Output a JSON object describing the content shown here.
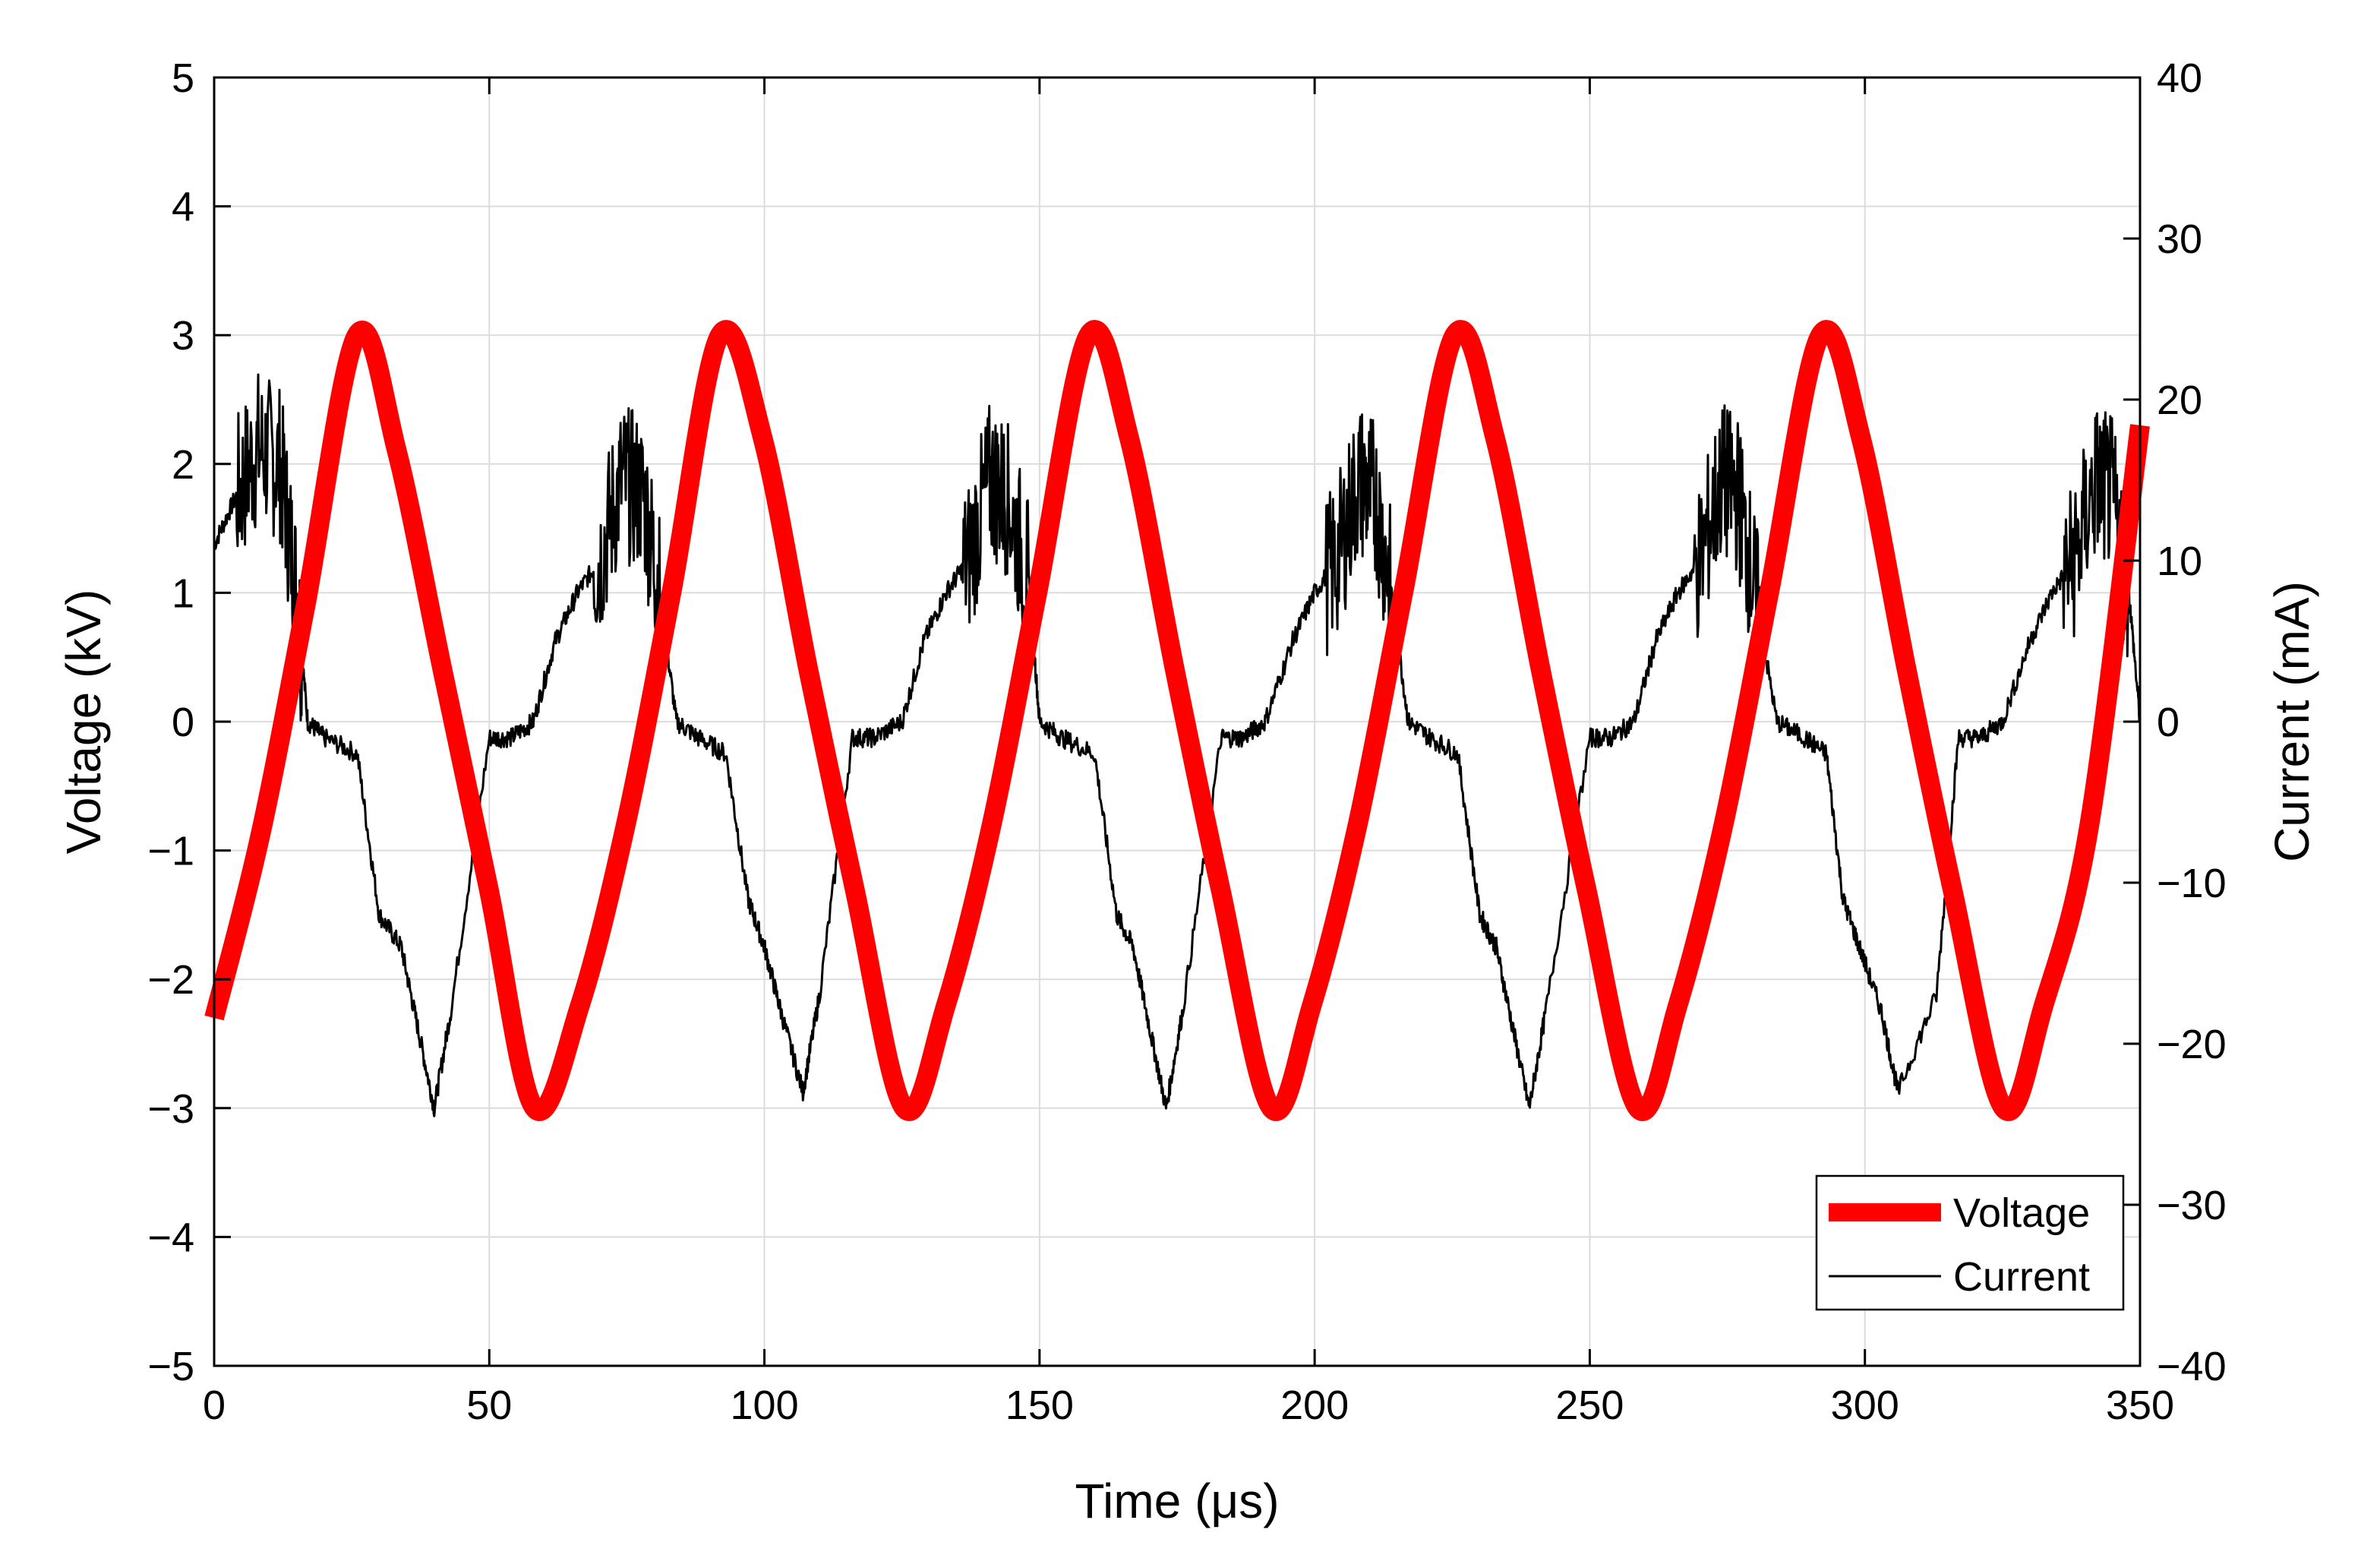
{
  "chart_data": {
    "type": "line",
    "title": "",
    "xlabel": "Time (μs)",
    "ylabel_left": "Voltage (kV)",
    "ylabel_right": "Current (mA)",
    "xlim": [
      0,
      350
    ],
    "ylim_left": [
      -5,
      5
    ],
    "ylim_right": [
      -40,
      40
    ],
    "xticks": [
      "0",
      "50",
      "100",
      "150",
      "200",
      "250",
      "300",
      "350"
    ],
    "yticks_left": [
      "−5",
      "−4",
      "−3",
      "−2",
      "−1",
      "0",
      "1",
      "2",
      "3",
      "4",
      "5"
    ],
    "yticks_right": [
      "−40",
      "−30",
      "−20",
      "−10",
      "0",
      "10",
      "20",
      "30",
      "40"
    ],
    "grid": true,
    "legend_position": "bottom-right",
    "legend": [
      "Voltage",
      "Current"
    ],
    "series": [
      {
        "name": "Voltage",
        "axis": "left",
        "color": "#ff0000",
        "description": "sinusoid, amplitude 3 kV, period ~66.5 μs",
        "x": [
          0,
          8.3,
          16.6,
          25.9,
          33.2,
          41.5,
          49.9,
          58.2,
          66.5,
          74.8,
          83.1,
          91.9,
          99.7,
          108.0,
          116.4,
          125.4,
          133.0,
          141.3,
          149.6,
          158.9,
          166.3,
          174.6,
          182.9,
          192.1,
          199.5,
          207.8,
          216.1,
          225.4,
          232.8,
          241.1,
          249.4,
          258.7,
          266.0,
          274.3,
          282.6,
          291.9,
          299.3,
          307.6,
          315.9,
          325.2,
          332.5,
          340.8,
          350.0
        ],
        "y": [
          -2.3,
          -0.9,
          0.9,
          3.0,
          2.1,
          0.4,
          -1.3,
          -3.0,
          -2.2,
          -0.8,
          1.0,
          3.0,
          2.2,
          0.4,
          -1.3,
          -3.0,
          -2.2,
          -0.8,
          1.0,
          3.0,
          2.2,
          0.4,
          -1.3,
          -3.0,
          -2.2,
          -0.8,
          1.0,
          3.0,
          2.2,
          0.4,
          -1.3,
          -3.0,
          -2.2,
          -0.8,
          1.0,
          3.0,
          2.2,
          0.4,
          -1.3,
          -3.0,
          -2.2,
          -0.8,
          2.3
        ]
      },
      {
        "name": "Current",
        "axis": "right",
        "color": "#000000",
        "description": "noisy discharge current with bursts near 10, 75, 142, 208, 275, 342 μs",
        "x": [
          0,
          4,
          8,
          12,
          15,
          17,
          20,
          26,
          30,
          34,
          37,
          40,
          43,
          50,
          54,
          58,
          62,
          66,
          70,
          74,
          78,
          81,
          84,
          88,
          93,
          97,
          100,
          103,
          107,
          110,
          116,
          120,
          125,
          129,
          133,
          137,
          141,
          144,
          148,
          150,
          154,
          160,
          164,
          167,
          170,
          173,
          176,
          183,
          187,
          191,
          196,
          200,
          204,
          208,
          211,
          214,
          217,
          221,
          226,
          230,
          233,
          236,
          239,
          242,
          250,
          254,
          258,
          262,
          266,
          270,
          274,
          277,
          280,
          284,
          289,
          293,
          296,
          299,
          303,
          306,
          313,
          317,
          321,
          325,
          330,
          334,
          338,
          342,
          345,
          348,
          350
        ],
        "y": [
          11,
          14,
          17,
          16,
          8,
          0,
          -1,
          -2,
          -12,
          -14,
          -19,
          -24,
          -18,
          -1,
          -1,
          0,
          5,
          8,
          10,
          15,
          14,
          8,
          0,
          -1,
          -2,
          -11,
          -14,
          -18,
          -23,
          -17,
          -1,
          -1,
          0,
          5,
          8,
          10,
          15,
          14,
          9,
          0,
          -1,
          -2,
          -12,
          -14,
          -19,
          -24,
          -18,
          -1,
          -1,
          0,
          5,
          8,
          10,
          15,
          14,
          8,
          0,
          -1,
          -2,
          -12,
          -14,
          -19,
          -24,
          -18,
          -1,
          -1,
          0,
          5,
          8,
          10,
          15,
          14,
          8,
          0,
          -1,
          -2,
          -11,
          -14,
          -18,
          -23,
          -17,
          -1,
          -1,
          0,
          5,
          8,
          10,
          15,
          14,
          8,
          0
        ]
      }
    ]
  }
}
